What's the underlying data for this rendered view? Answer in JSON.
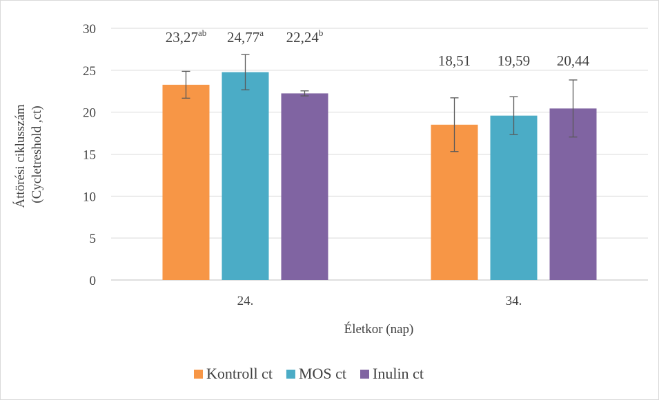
{
  "chart_data": {
    "type": "bar",
    "xlabel": "Életkor (nap)",
    "ylabel_lines": [
      "Áttörési ciklusszám",
      "(Cycletreshold ,ct)"
    ],
    "ylim": [
      0,
      30
    ],
    "yticks": [
      0,
      5,
      10,
      15,
      20,
      25,
      30
    ],
    "categories": [
      "24.",
      "34."
    ],
    "grid": true,
    "legend_position": "bottom",
    "series": [
      {
        "name": "Kontroll ct",
        "color": "#F79646",
        "values": [
          23.27,
          18.51
        ],
        "errors": [
          1.6,
          3.2
        ],
        "labels": [
          {
            "value": "23,27",
            "sup": "ab"
          },
          {
            "value": "18,51",
            "sup": ""
          }
        ]
      },
      {
        "name": "MOS ct",
        "color": "#4BACC6",
        "values": [
          24.77,
          19.59
        ],
        "errors": [
          2.1,
          2.25
        ],
        "labels": [
          {
            "value": "24,77",
            "sup": "a"
          },
          {
            "value": "19,59",
            "sup": ""
          }
        ]
      },
      {
        "name": "Inulin ct",
        "color": "#8064A2",
        "values": [
          22.24,
          20.44
        ],
        "errors": [
          0.3,
          3.4
        ],
        "labels": [
          {
            "value": "22,24",
            "sup": "b"
          },
          {
            "value": "20,44",
            "sup": ""
          }
        ]
      }
    ]
  }
}
